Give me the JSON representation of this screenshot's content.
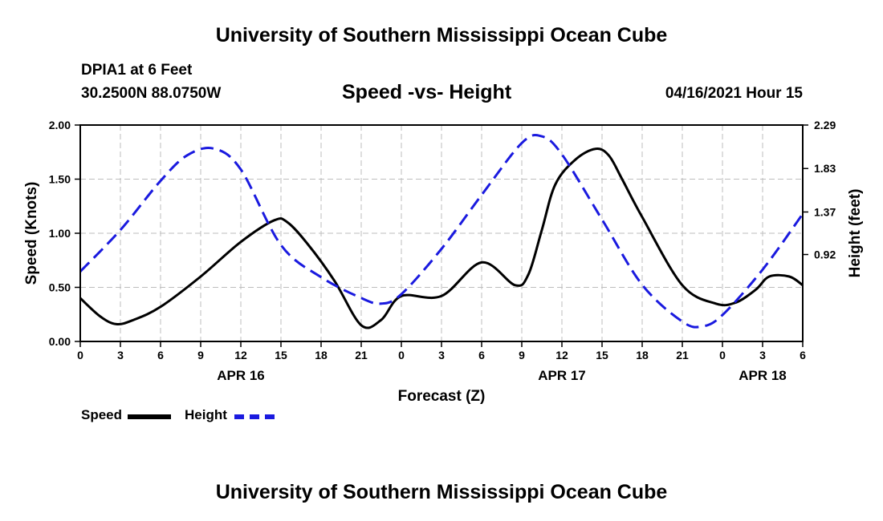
{
  "header": {
    "title": "University of Southern Mississippi Ocean Cube",
    "station": "DPIA1 at 6 Feet",
    "coords": "30.2500N  88.0750W",
    "chart_title": "Speed -vs- Height",
    "date_stamp": "04/16/2021 Hour 15"
  },
  "footer": {
    "title": "University of Southern Mississippi Ocean Cube"
  },
  "legend": {
    "speed_label": "Speed",
    "height_label": "Height"
  },
  "colors": {
    "speed": "#000000",
    "height": "#1a1adf",
    "grid": "#bdbdbd"
  },
  "chart_data": {
    "type": "line",
    "title": "Speed -vs- Height",
    "xlabel": "Forecast (Z)",
    "ylabel": "Speed (Knots)",
    "y2label": "Height (feet)",
    "x_unit": "forecast hours from 04/16 00Z",
    "xlim": [
      0,
      54
    ],
    "ylim": [
      0,
      2
    ],
    "y2lim": [
      0,
      2.29
    ],
    "x_ticks": [
      0,
      3,
      6,
      9,
      12,
      15,
      18,
      21,
      24,
      27,
      30,
      33,
      36,
      39,
      42,
      45,
      48,
      51,
      54
    ],
    "x_tick_labels": [
      "0",
      "3",
      "6",
      "9",
      "12",
      "15",
      "18",
      "21",
      "0",
      "3",
      "6",
      "9",
      "12",
      "15",
      "18",
      "21",
      "0",
      "3",
      "6"
    ],
    "y_ticks": [
      "0.00",
      "0.50",
      "1.00",
      "1.50",
      "2.00"
    ],
    "y2_ticks": [
      "0.92",
      "1.37",
      "1.83",
      "2.29"
    ],
    "date_labels": [
      {
        "x": 12,
        "label": "APR 16"
      },
      {
        "x": 36,
        "label": "APR 17"
      },
      {
        "x": 51,
        "label": "APR 18"
      }
    ],
    "series": [
      {
        "name": "Speed",
        "axis": "left",
        "x": [
          0,
          1.5,
          2.7,
          4,
          6,
          9,
          12,
          14.5,
          15.5,
          17,
          19,
          21,
          22.5,
          24,
          27,
          30,
          32.5,
          33.5,
          34.5,
          35.5,
          37,
          38.5,
          39.5,
          40.5,
          42,
          45,
          47.5,
          49,
          50.5,
          51.5,
          53,
          54
        ],
        "values": [
          0.4,
          0.23,
          0.16,
          0.2,
          0.32,
          0.6,
          0.92,
          1.12,
          1.1,
          0.9,
          0.56,
          0.15,
          0.2,
          0.42,
          0.42,
          0.73,
          0.52,
          0.62,
          1.03,
          1.45,
          1.68,
          1.78,
          1.72,
          1.5,
          1.15,
          0.52,
          0.35,
          0.36,
          0.48,
          0.6,
          0.6,
          0.52
        ]
      },
      {
        "name": "Height",
        "axis": "right",
        "x": [
          0,
          3,
          6,
          8,
          10,
          12,
          15,
          18,
          21,
          22.5,
          24,
          27,
          30,
          33,
          34.5,
          36,
          39,
          42,
          45,
          46.5,
          48,
          51,
          54
        ],
        "values": [
          0.74,
          1.18,
          1.7,
          1.97,
          2.04,
          1.82,
          1.02,
          0.68,
          0.46,
          0.4,
          0.5,
          0.98,
          1.55,
          2.1,
          2.17,
          1.98,
          1.29,
          0.6,
          0.21,
          0.16,
          0.28,
          0.76,
          1.35
        ]
      }
    ]
  }
}
